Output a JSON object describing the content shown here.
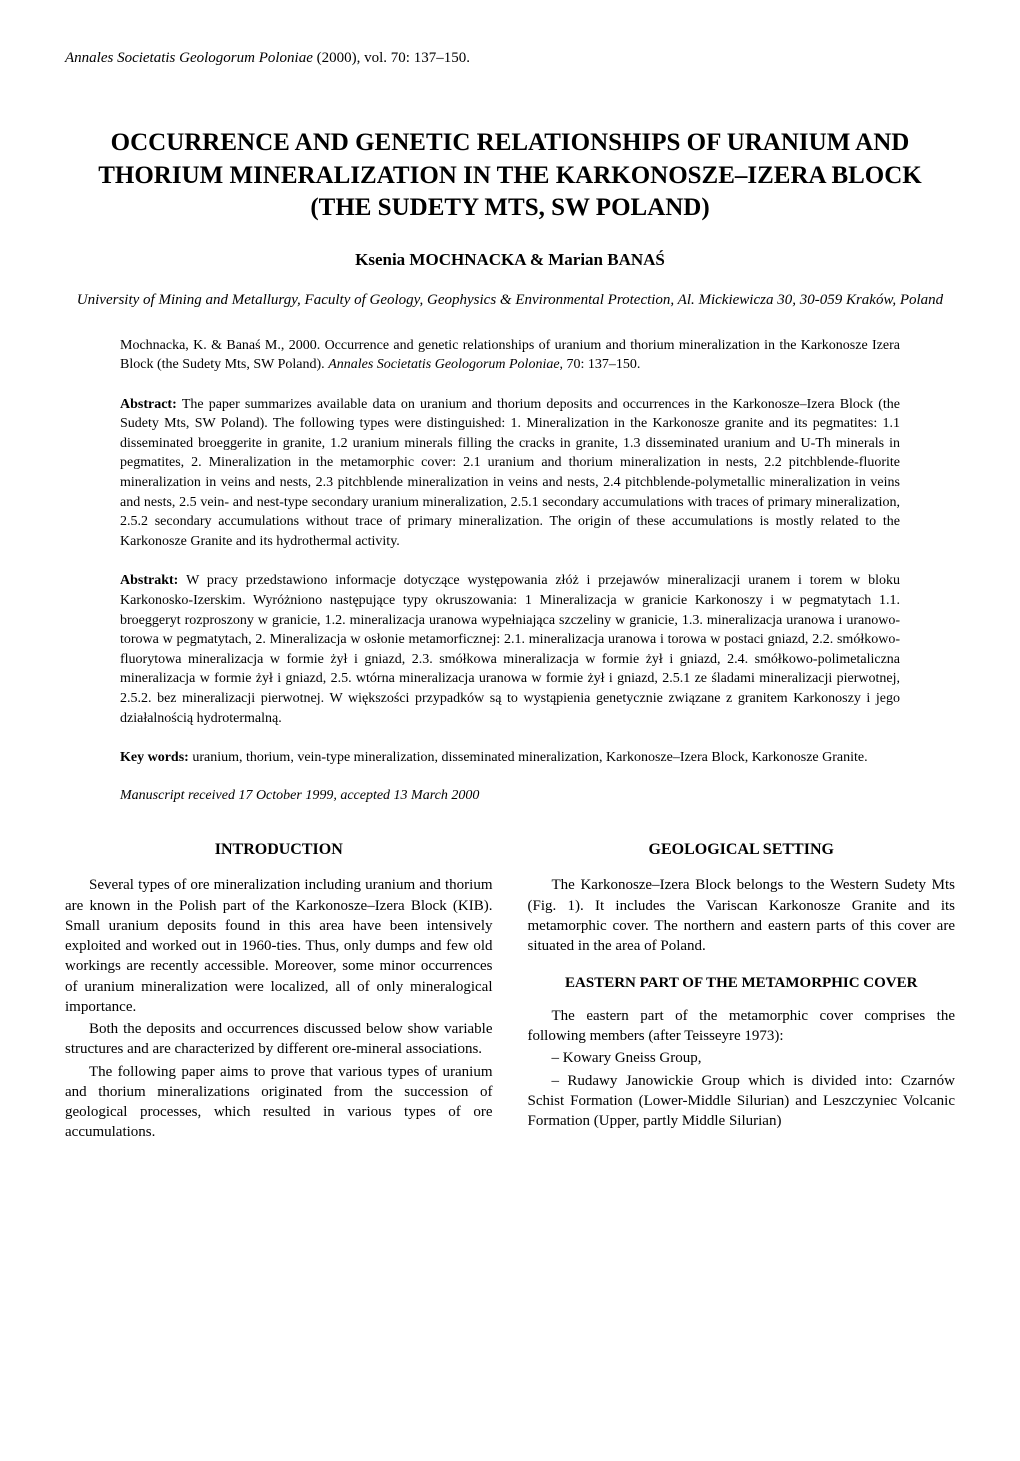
{
  "journal_ref_prefix": "Annales Societatis Geologorum Poloniae",
  "journal_ref_suffix": " (2000), vol. 70: 137–150.",
  "title": "OCCURRENCE AND GENETIC RELATIONSHIPS OF URANIUM AND THORIUM MINERALIZATION IN THE KARKONOSZE–IZERA BLOCK (THE SUDETY MTS, SW POLAND)",
  "authors": "Ksenia MOCHNACKA & Marian BANAŚ",
  "affiliation": "University of Mining and Metallurgy, Faculty of Geology, Geophysics & Environmental Protection, Al. Mickiewicza 30, 30-059 Kraków, Poland",
  "citation_prefix": "Mochnacka, K. & Banaś M., 2000. Occurrence and genetic relationships of uranium and thorium mineralization in the Karkonosze Izera Block (the Sudety Mts, SW Poland). ",
  "citation_journal": "Annales Societatis Geologorum Poloniae",
  "citation_suffix": ", 70: 137–150.",
  "abstract_en_label": "Abstract: ",
  "abstract_en": "The paper summarizes available data on uranium and thorium deposits and occurrences in the Karkonosze–Izera Block (the Sudety Mts, SW Poland). The following types were distinguished: 1. Mineralization in the Karkonosze granite and its pegmatites: 1.1 disseminated broeggerite in granite, 1.2 uranium minerals filling the cracks in granite, 1.3 disseminated uranium and U-Th minerals in pegmatites, 2. Mineralization in the metamorphic cover: 2.1 uranium and thorium mineralization in nests, 2.2 pitchblende-fluorite mineralization in veins and nests, 2.3 pitchblende mineralization in veins and nests, 2.4 pitchblende-polymetallic mineralization in veins and nests, 2.5 vein- and nest-type secondary uranium mineralization, 2.5.1 secondary accumulations with traces of primary mineralization, 2.5.2 secondary accumulations without trace of primary mineralization. The origin of these accumulations is mostly related to the Karkonosze Granite and its hydrothermal activity.",
  "abstract_pl_label": "Abstrakt: ",
  "abstract_pl": "W pracy przedstawiono informacje dotyczące występowania złóż i przejawów mineralizacji uranem i torem w bloku Karkonosko-Izerskim. Wyróżniono następujące typy okruszowania: 1 Mineralizacja w granicie Karkonoszy i w pegmatytach 1.1. broeggeryt rozproszony w granicie, 1.2. mineralizacja uranowa wypełniająca szczeliny w granicie, 1.3. mineralizacja uranowa i uranowo-torowa w pegmatytach, 2. Mineralizacja w osłonie metamorficznej: 2.1. mineralizacja uranowa i torowa w postaci gniazd, 2.2. smółkowo-fluorytowa mineralizacja w formie żył i gniazd, 2.3. smółkowa mineralizacja w formie żył i gniazd, 2.4. smółkowo-polimetaliczna mineralizacja w formie żył i gniazd, 2.5. wtórna mineralizacja uranowa w formie żył i gniazd, 2.5.1 ze śladami mineralizacji pierwotnej, 2.5.2. bez mineralizacji pierwotnej. W większości przypadków są to wystąpienia genetycznie związane z granitem Karkonoszy i jego działalnością hydrotermalną.",
  "keywords_label": "Key words: ",
  "keywords": "uranium, thorium, vein-type mineralization, disseminated mineralization, Karkonosze–Izera Block, Karkonosze Granite.",
  "manuscript": "Manuscript received 17 October 1999, accepted 13 March 2000",
  "left_col": {
    "heading_intro": "INTRODUCTION",
    "p1": "Several types of ore mineralization including uranium and thorium are known in the Polish part of the Karkonosze–Izera Block (KIB). Small uranium deposits found in this area have been intensively exploited and worked out in 1960-ties. Thus, only dumps and few old workings are recently accessible. Moreover, some minor occurrences of uranium mineralization were localized, all of only mineralogical importance.",
    "p2": "Both the deposits and occurrences discussed below show variable structures and are characterized by different ore-mineral associations.",
    "p3": "The following paper aims to prove that various types of uranium and thorium mineralizations originated from the succession of geological processes, which resulted in various types of ore accumulations."
  },
  "right_col": {
    "heading_geo": "GEOLOGICAL SETTING",
    "p1": "The Karkonosze–Izera Block belongs to the Western Sudety Mts (Fig. 1). It includes the Variscan Karkonosze Granite and its metamorphic cover. The northern and eastern parts of this cover are situated in the area of Poland.",
    "subheading": "EASTERN PART OF THE METAMORPHIC COVER",
    "p2": "The eastern part of the metamorphic cover comprises the following members (after Teisseyre 1973):",
    "li1": "– Kowary Gneiss Group,",
    "li2": "– Rudawy Janowickie Group which is divided into: Czarnów Schist Formation (Lower-Middle Silurian) and Leszczyniec Volcanic Formation (Upper, partly Middle Silurian)"
  }
}
